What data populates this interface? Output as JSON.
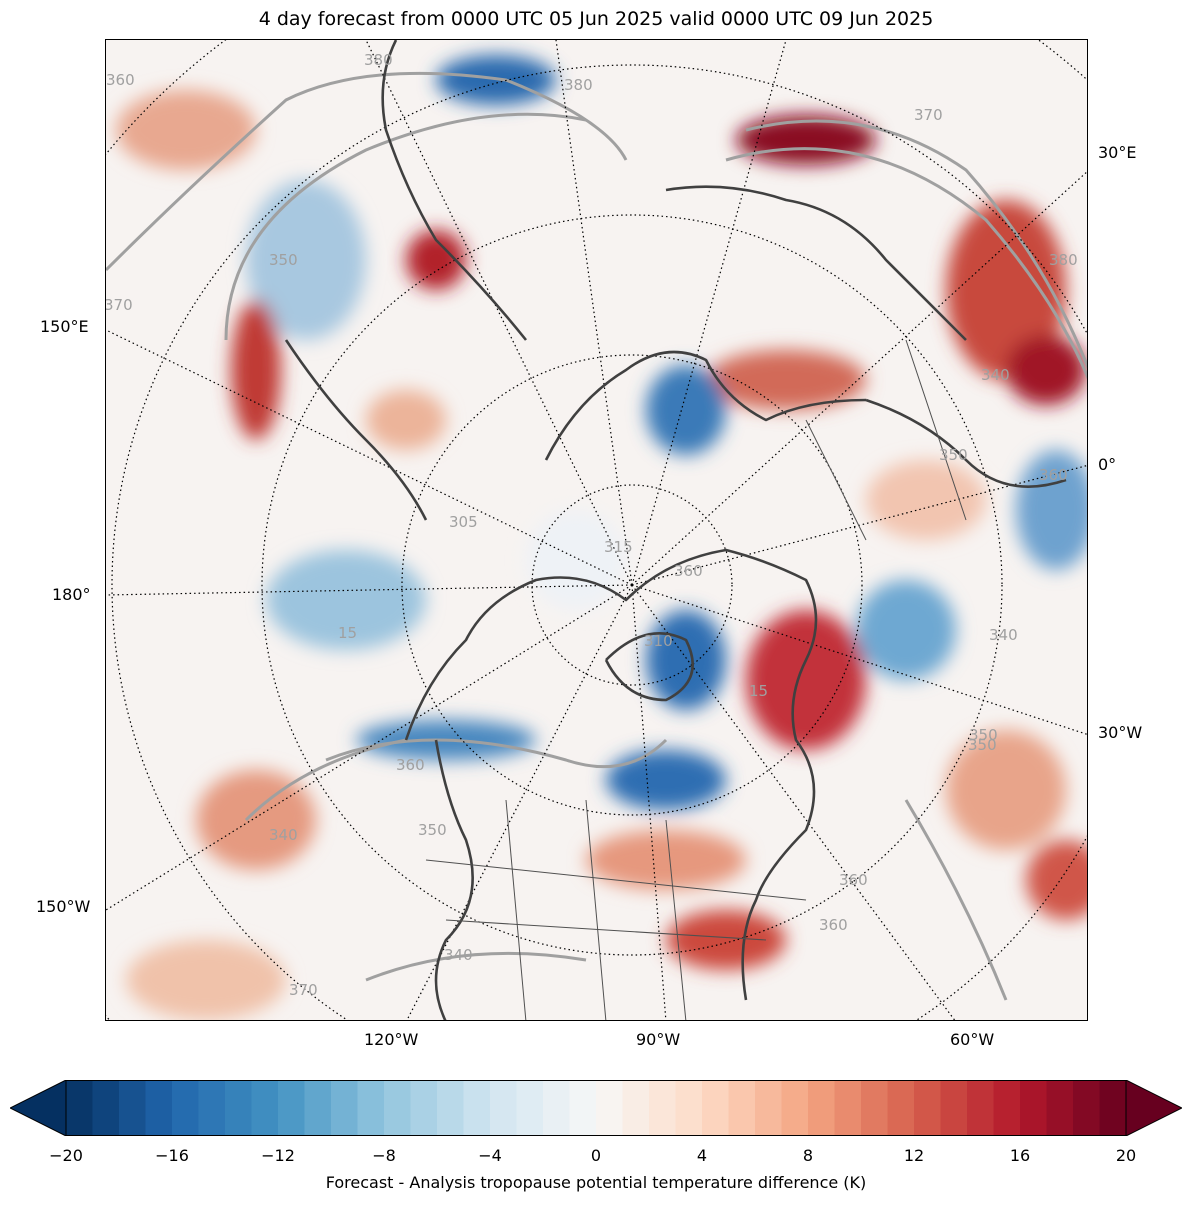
{
  "title": "4 day forecast from 0000 UTC 05 Jun 2025 valid 0000 UTC 09 Jun 2025",
  "map": {
    "projection": "north-polar-stereographic",
    "longitude_labels": {
      "e30": "30°E",
      "e150": "150°E",
      "zero": "0°",
      "w180": "180°",
      "w30": "30°W",
      "w150": "150°W",
      "w120": "120°W",
      "w90": "90°W",
      "w60": "60°W"
    },
    "contour_labels": [
      "360",
      "380",
      "380",
      "370",
      "380",
      "350",
      "370",
      "340",
      "350",
      "360",
      "350",
      "340",
      "360",
      "370",
      "315",
      "305",
      "340",
      "350",
      "360",
      "15",
      "310",
      "360",
      "360",
      "340",
      "350",
      "15"
    ],
    "colors": {
      "land_outline": "#404040",
      "contour": "#a0a0a0",
      "graticule": "#000000"
    }
  },
  "colorbar": {
    "ticks": [
      "−20",
      "−16",
      "−12",
      "−8",
      "−4",
      "0",
      "4",
      "8",
      "12",
      "16",
      "20"
    ],
    "min": -20,
    "max": 20,
    "label": "Forecast - Analysis tropopause potential temperature difference (K)",
    "colormap": "RdBu_r",
    "extend": "both"
  }
}
